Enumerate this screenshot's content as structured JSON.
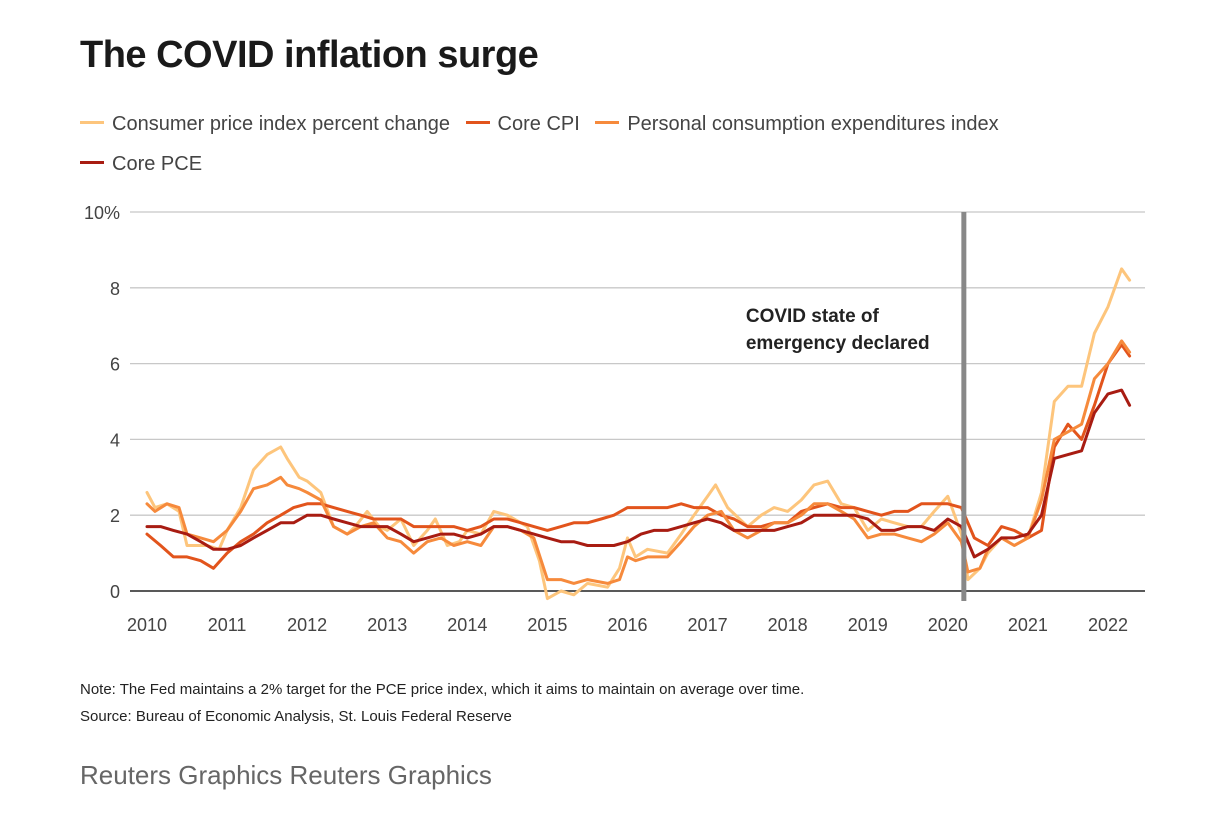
{
  "header": {
    "title": "The COVID inflation surge"
  },
  "legend": [
    {
      "label": "Consumer price index percent change",
      "color": "#fdc57c"
    },
    {
      "label": "Core CPI",
      "color": "#e2541c"
    },
    {
      "label": "Personal consumption expenditures index",
      "color": "#f68a3c"
    },
    {
      "label": "Core PCE",
      "color": "#a81c12"
    }
  ],
  "footer": {
    "note": "Note: The Fed maintains a 2% target for the PCE price index, which it aims to maintain on average over time.",
    "source": "Source: Bureau of Economic Analysis, St. Louis Federal Reserve",
    "credit": "Reuters Graphics Reuters Graphics"
  },
  "chart_data": {
    "type": "line",
    "title": "The COVID inflation surge",
    "xlabel": "",
    "ylabel": "",
    "xlim": [
      2010,
      2022.35
    ],
    "ylim": [
      0,
      10
    ],
    "grid": true,
    "legend_position": "top",
    "x_ticks": [
      2010,
      2011,
      2012,
      2013,
      2014,
      2015,
      2016,
      2017,
      2018,
      2019,
      2020,
      2021,
      2022
    ],
    "x_tick_labels": [
      "2010",
      "2011",
      "2012",
      "2013",
      "2014",
      "2015",
      "2016",
      "2017",
      "2018",
      "2019",
      "2020",
      "2021",
      "2022"
    ],
    "y_ticks": [
      0,
      2,
      4,
      6,
      8,
      10
    ],
    "y_tick_labels": [
      "0",
      "2",
      "4",
      "6",
      "8",
      "10%"
    ],
    "annotations": [
      {
        "x": 2020.2,
        "text_lines": [
          "COVID state of",
          "emergency declared"
        ],
        "type": "vertical-line",
        "color": "#888888"
      }
    ],
    "series": [
      {
        "name": "Consumer price index percent change",
        "color": "#fdc57c",
        "x": [
          2010.0,
          2010.1,
          2010.25,
          2010.4,
          2010.5,
          2010.6,
          2010.75,
          2010.9,
          2011.0,
          2011.17,
          2011.33,
          2011.5,
          2011.67,
          2011.75,
          2011.9,
          2012.0,
          2012.17,
          2012.33,
          2012.5,
          2012.6,
          2012.75,
          2012.9,
          2013.0,
          2013.17,
          2013.33,
          2013.5,
          2013.6,
          2013.75,
          2013.9,
          2014.0,
          2014.17,
          2014.33,
          2014.5,
          2014.75,
          2014.9,
          2015.0,
          2015.17,
          2015.33,
          2015.5,
          2015.75,
          2015.9,
          2016.0,
          2016.1,
          2016.25,
          2016.5,
          2016.67,
          2016.83,
          2017.0,
          2017.1,
          2017.25,
          2017.5,
          2017.67,
          2017.83,
          2018.0,
          2018.17,
          2018.33,
          2018.5,
          2018.67,
          2018.83,
          2019.0,
          2019.17,
          2019.33,
          2019.5,
          2019.67,
          2019.83,
          2020.0,
          2020.17,
          2020.25,
          2020.4,
          2020.5,
          2020.67,
          2020.83,
          2021.0,
          2021.17,
          2021.33,
          2021.5,
          2021.67,
          2021.83,
          2022.0,
          2022.17,
          2022.27
        ],
        "values": [
          2.6,
          2.2,
          2.3,
          2.1,
          1.2,
          1.2,
          1.2,
          1.1,
          1.6,
          2.2,
          3.2,
          3.6,
          3.8,
          3.5,
          3.0,
          2.9,
          2.6,
          1.7,
          1.5,
          1.7,
          2.1,
          1.7,
          1.6,
          1.9,
          1.2,
          1.6,
          1.9,
          1.2,
          1.3,
          1.6,
          1.5,
          2.1,
          2.0,
          1.7,
          0.8,
          -0.2,
          0.0,
          -0.1,
          0.2,
          0.1,
          0.6,
          1.4,
          0.9,
          1.1,
          1.0,
          1.5,
          2.0,
          2.5,
          2.8,
          2.2,
          1.7,
          2.0,
          2.2,
          2.1,
          2.4,
          2.8,
          2.9,
          2.3,
          2.2,
          1.6,
          1.9,
          1.8,
          1.7,
          1.7,
          2.1,
          2.5,
          1.5,
          0.3,
          0.6,
          1.0,
          1.4,
          1.2,
          1.4,
          2.6,
          5.0,
          5.4,
          5.4,
          6.8,
          7.5,
          8.5,
          8.2
        ]
      },
      {
        "name": "Core CPI",
        "color": "#e2541c",
        "x": [
          2010.0,
          2010.17,
          2010.33,
          2010.5,
          2010.67,
          2010.83,
          2011.0,
          2011.17,
          2011.33,
          2011.5,
          2011.67,
          2011.83,
          2012.0,
          2012.17,
          2012.33,
          2012.5,
          2012.67,
          2012.83,
          2013.0,
          2013.17,
          2013.33,
          2013.5,
          2013.67,
          2013.83,
          2014.0,
          2014.17,
          2014.33,
          2014.5,
          2014.67,
          2014.83,
          2015.0,
          2015.17,
          2015.33,
          2015.5,
          2015.67,
          2015.83,
          2016.0,
          2016.17,
          2016.33,
          2016.5,
          2016.67,
          2016.83,
          2017.0,
          2017.17,
          2017.33,
          2017.5,
          2017.67,
          2017.83,
          2018.0,
          2018.17,
          2018.33,
          2018.5,
          2018.67,
          2018.83,
          2019.0,
          2019.17,
          2019.33,
          2019.5,
          2019.67,
          2019.83,
          2020.0,
          2020.17,
          2020.33,
          2020.5,
          2020.67,
          2020.83,
          2021.0,
          2021.17,
          2021.33,
          2021.5,
          2021.67,
          2021.83,
          2022.0,
          2022.17,
          2022.27
        ],
        "values": [
          1.5,
          1.2,
          0.9,
          0.9,
          0.8,
          0.6,
          1.0,
          1.3,
          1.5,
          1.8,
          2.0,
          2.2,
          2.3,
          2.3,
          2.2,
          2.1,
          2.0,
          1.9,
          1.9,
          1.9,
          1.7,
          1.7,
          1.7,
          1.7,
          1.6,
          1.7,
          1.9,
          1.9,
          1.8,
          1.7,
          1.6,
          1.7,
          1.8,
          1.8,
          1.9,
          2.0,
          2.2,
          2.2,
          2.2,
          2.2,
          2.3,
          2.2,
          2.2,
          2.0,
          1.9,
          1.7,
          1.7,
          1.8,
          1.8,
          2.1,
          2.2,
          2.3,
          2.2,
          2.2,
          2.1,
          2.0,
          2.1,
          2.1,
          2.3,
          2.3,
          2.3,
          2.2,
          1.4,
          1.2,
          1.7,
          1.6,
          1.4,
          1.6,
          3.8,
          4.4,
          4.0,
          4.9,
          6.0,
          6.5,
          6.2
        ]
      },
      {
        "name": "Personal consumption expenditures index",
        "color": "#f68a3c",
        "x": [
          2010.0,
          2010.1,
          2010.25,
          2010.4,
          2010.5,
          2010.67,
          2010.83,
          2011.0,
          2011.17,
          2011.33,
          2011.5,
          2011.67,
          2011.75,
          2011.9,
          2012.0,
          2012.17,
          2012.33,
          2012.5,
          2012.67,
          2012.83,
          2013.0,
          2013.17,
          2013.33,
          2013.5,
          2013.67,
          2013.83,
          2014.0,
          2014.17,
          2014.33,
          2014.5,
          2014.67,
          2014.83,
          2015.0,
          2015.17,
          2015.33,
          2015.5,
          2015.75,
          2015.9,
          2016.0,
          2016.1,
          2016.25,
          2016.5,
          2016.67,
          2016.83,
          2017.0,
          2017.17,
          2017.33,
          2017.5,
          2017.67,
          2017.83,
          2018.0,
          2018.17,
          2018.33,
          2018.5,
          2018.67,
          2018.83,
          2019.0,
          2019.17,
          2019.33,
          2019.5,
          2019.67,
          2019.83,
          2020.0,
          2020.17,
          2020.25,
          2020.4,
          2020.5,
          2020.67,
          2020.83,
          2021.0,
          2021.17,
          2021.33,
          2021.5,
          2021.67,
          2021.83,
          2022.0,
          2022.17,
          2022.27
        ],
        "values": [
          2.3,
          2.1,
          2.3,
          2.2,
          1.5,
          1.4,
          1.3,
          1.6,
          2.1,
          2.7,
          2.8,
          3.0,
          2.8,
          2.7,
          2.6,
          2.4,
          1.7,
          1.5,
          1.7,
          1.8,
          1.4,
          1.3,
          1.0,
          1.3,
          1.4,
          1.2,
          1.3,
          1.2,
          1.7,
          1.7,
          1.6,
          1.4,
          0.3,
          0.3,
          0.2,
          0.3,
          0.2,
          0.3,
          0.9,
          0.8,
          0.9,
          0.9,
          1.3,
          1.7,
          2.0,
          2.1,
          1.6,
          1.4,
          1.6,
          1.8,
          1.8,
          2.0,
          2.3,
          2.3,
          2.1,
          1.9,
          1.4,
          1.5,
          1.5,
          1.4,
          1.3,
          1.5,
          1.8,
          1.3,
          0.5,
          0.6,
          1.1,
          1.4,
          1.2,
          1.4,
          2.4,
          4.0,
          4.2,
          4.4,
          5.6,
          6.0,
          6.6,
          6.3
        ]
      },
      {
        "name": "Core PCE",
        "color": "#a81c12",
        "x": [
          2010.0,
          2010.17,
          2010.33,
          2010.5,
          2010.67,
          2010.83,
          2011.0,
          2011.17,
          2011.33,
          2011.5,
          2011.67,
          2011.83,
          2012.0,
          2012.17,
          2012.33,
          2012.5,
          2012.67,
          2012.83,
          2013.0,
          2013.17,
          2013.33,
          2013.5,
          2013.67,
          2013.83,
          2014.0,
          2014.17,
          2014.33,
          2014.5,
          2014.67,
          2014.83,
          2015.0,
          2015.17,
          2015.33,
          2015.5,
          2015.67,
          2015.83,
          2016.0,
          2016.17,
          2016.33,
          2016.5,
          2016.67,
          2016.83,
          2017.0,
          2017.17,
          2017.33,
          2017.5,
          2017.67,
          2017.83,
          2018.0,
          2018.17,
          2018.33,
          2018.5,
          2018.67,
          2018.83,
          2019.0,
          2019.17,
          2019.33,
          2019.5,
          2019.67,
          2019.83,
          2020.0,
          2020.17,
          2020.33,
          2020.5,
          2020.67,
          2020.83,
          2021.0,
          2021.17,
          2021.33,
          2021.5,
          2021.67,
          2021.83,
          2022.0,
          2022.17,
          2022.27
        ],
        "values": [
          1.7,
          1.7,
          1.6,
          1.5,
          1.3,
          1.1,
          1.1,
          1.2,
          1.4,
          1.6,
          1.8,
          1.8,
          2.0,
          2.0,
          1.9,
          1.8,
          1.7,
          1.7,
          1.7,
          1.5,
          1.3,
          1.4,
          1.5,
          1.5,
          1.4,
          1.5,
          1.7,
          1.7,
          1.6,
          1.5,
          1.4,
          1.3,
          1.3,
          1.2,
          1.2,
          1.2,
          1.3,
          1.5,
          1.6,
          1.6,
          1.7,
          1.8,
          1.9,
          1.8,
          1.6,
          1.6,
          1.6,
          1.6,
          1.7,
          1.8,
          2.0,
          2.0,
          2.0,
          2.0,
          1.9,
          1.6,
          1.6,
          1.7,
          1.7,
          1.6,
          1.9,
          1.7,
          0.9,
          1.1,
          1.4,
          1.4,
          1.5,
          2.0,
          3.5,
          3.6,
          3.7,
          4.7,
          5.2,
          5.3,
          4.9
        ]
      }
    ]
  }
}
